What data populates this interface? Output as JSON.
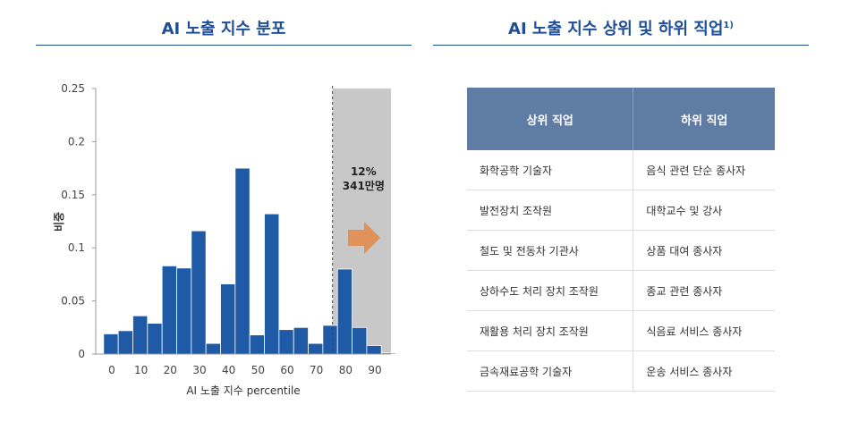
{
  "titles": {
    "left": "AI 노출 지수 분포",
    "right": "AI 노출 지수 상위 및 하위 직업",
    "right_sup": "1)"
  },
  "chart_data": {
    "type": "bar",
    "x": [
      0,
      5,
      10,
      15,
      20,
      25,
      30,
      35,
      40,
      45,
      50,
      55,
      60,
      65,
      70,
      75,
      80,
      85,
      90,
      95
    ],
    "values": [
      0.019,
      0.022,
      0.036,
      0.029,
      0.083,
      0.081,
      0.116,
      0.01,
      0.066,
      0.175,
      0.018,
      0.132,
      0.023,
      0.025,
      0.01,
      0.027,
      0.08,
      0.025,
      0.008,
      0.001
    ],
    "xticks": [
      0,
      10,
      20,
      30,
      40,
      50,
      60,
      70,
      80,
      90
    ],
    "yticks": [
      0,
      0.05,
      0.1,
      0.15,
      0.2,
      0.25
    ],
    "ytick_labels": [
      "0",
      "0.05",
      "0.1",
      "0.15",
      "0.2",
      "0.25"
    ],
    "xlabel": "AI 노출 지수 percentile",
    "ylabel": "비중",
    "xlim": [
      -3,
      98
    ],
    "ylim": [
      0,
      0.25
    ],
    "bar_color": "#1f5aa6",
    "threshold": 78,
    "shade_color": "#c8c8c8",
    "arrow_color": "#e0925a",
    "annotation": [
      "12%",
      "341만명"
    ]
  },
  "table": {
    "headers": [
      "상위 직업",
      "하위 직업"
    ],
    "rows": [
      [
        "화학공학 기술자",
        "음식 관련 단순 종사자"
      ],
      [
        "발전장치 조작원",
        "대학교수 및 강사"
      ],
      [
        "철도 및 전동차 기관사",
        "상품 대여 종사자"
      ],
      [
        "상하수도 처리 장치 조작원",
        "종교 관련 종사자"
      ],
      [
        "재활용 처리 장치 조작원",
        "식음료 서비스 종사자"
      ],
      [
        "금속재료공학 기술자",
        "운송 서비스 종사자"
      ]
    ]
  }
}
